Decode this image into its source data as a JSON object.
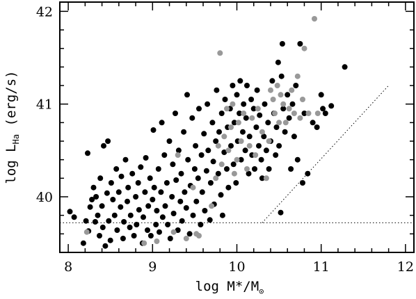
{
  "chart_data": {
    "type": "scatter",
    "xlabel": {
      "prefix": "log M*/M",
      "sub": "⊙"
    },
    "ylabel": {
      "prefix": "log L",
      "sub": "Ha",
      "suffix": " (erg/s)"
    },
    "xlim": [
      7.9,
      12.1
    ],
    "ylim": [
      39.4,
      42.1
    ],
    "x_ticks": [
      8,
      9,
      10,
      11,
      12
    ],
    "y_ticks": [
      40,
      41,
      42
    ],
    "x_minor_step": 0.2,
    "y_minor_step": 0.2,
    "grid": false,
    "reference_lines": [
      {
        "style": "dotted",
        "points": [
          [
            7.9,
            39.72
          ],
          [
            12.1,
            39.72
          ]
        ]
      },
      {
        "style": "dotted",
        "points": [
          [
            10.3,
            39.72
          ],
          [
            11.8,
            41.2
          ]
        ]
      }
    ],
    "series": [
      {
        "color": "#000000",
        "points": [
          [
            8.02,
            39.84
          ],
          [
            8.07,
            39.78
          ],
          [
            8.18,
            39.5
          ],
          [
            8.24,
            39.63
          ],
          [
            8.21,
            39.74
          ],
          [
            8.23,
            40.47
          ],
          [
            8.26,
            39.89
          ],
          [
            8.28,
            39.97
          ],
          [
            8.3,
            40.1
          ],
          [
            8.32,
            39.73
          ],
          [
            8.33,
            40.0
          ],
          [
            8.35,
            39.8
          ],
          [
            8.37,
            39.58
          ],
          [
            8.38,
            40.2
          ],
          [
            8.4,
            39.9
          ],
          [
            8.41,
            39.67
          ],
          [
            8.42,
            40.55
          ],
          [
            8.44,
            39.47
          ],
          [
            8.46,
            40.04
          ],
          [
            8.47,
            40.6
          ],
          [
            8.48,
            39.74
          ],
          [
            8.5,
            39.53
          ],
          [
            8.51,
            40.15
          ],
          [
            8.53,
            39.97
          ],
          [
            8.55,
            39.8
          ],
          [
            8.57,
            40.3
          ],
          [
            8.58,
            39.64
          ],
          [
            8.6,
            40.05
          ],
          [
            8.62,
            39.89
          ],
          [
            8.63,
            40.22
          ],
          [
            8.65,
            39.55
          ],
          [
            8.66,
            39.73
          ],
          [
            8.68,
            40.4
          ],
          [
            8.7,
            39.95
          ],
          [
            8.71,
            40.1
          ],
          [
            8.73,
            39.67
          ],
          [
            8.74,
            39.8
          ],
          [
            8.76,
            40.25
          ],
          [
            8.78,
            39.58
          ],
          [
            8.8,
            40.0
          ],
          [
            8.81,
            39.7
          ],
          [
            8.83,
            40.15
          ],
          [
            8.84,
            39.86
          ],
          [
            8.86,
            40.32
          ],
          [
            8.88,
            39.5
          ],
          [
            8.89,
            39.78
          ],
          [
            8.91,
            40.05
          ],
          [
            8.92,
            40.42
          ],
          [
            8.94,
            39.64
          ],
          [
            8.95,
            39.9
          ],
          [
            8.97,
            40.2
          ],
          [
            8.98,
            39.58
          ],
          [
            9.0,
            39.97
          ],
          [
            9.01,
            40.72
          ],
          [
            9.02,
            40.1
          ],
          [
            9.04,
            39.7
          ],
          [
            9.05,
            39.85
          ],
          [
            9.07,
            40.3
          ],
          [
            9.08,
            39.62
          ],
          [
            9.1,
            40.05
          ],
          [
            9.11,
            40.8
          ],
          [
            9.12,
            39.78
          ],
          [
            9.14,
            40.45
          ],
          [
            9.15,
            39.9
          ],
          [
            9.17,
            40.15
          ],
          [
            9.18,
            39.7
          ],
          [
            9.2,
            40.6
          ],
          [
            9.21,
            39.55
          ],
          [
            9.23,
            40.0
          ],
          [
            9.24,
            40.35
          ],
          [
            9.25,
            39.82
          ],
          [
            9.27,
            40.9
          ],
          [
            9.28,
            40.18
          ],
          [
            9.3,
            39.64
          ],
          [
            9.31,
            40.5
          ],
          [
            9.33,
            39.95
          ],
          [
            9.34,
            40.25
          ],
          [
            9.35,
            39.74
          ],
          [
            9.37,
            40.7
          ],
          [
            9.38,
            40.05
          ],
          [
            9.4,
            39.88
          ],
          [
            9.41,
            41.1
          ],
          [
            9.42,
            40.4
          ],
          [
            9.44,
            39.6
          ],
          [
            9.45,
            40.12
          ],
          [
            9.47,
            40.85
          ],
          [
            9.48,
            39.8
          ],
          [
            9.5,
            40.3
          ],
          [
            9.51,
            40.55
          ],
          [
            9.52,
            39.95
          ],
          [
            9.54,
            40.2
          ],
          [
            9.55,
            40.95
          ],
          [
            9.57,
            39.7
          ],
          [
            9.58,
            40.45
          ],
          [
            9.59,
            40.05
          ],
          [
            9.61,
            40.68
          ],
          [
            9.62,
            39.85
          ],
          [
            9.64,
            40.28
          ],
          [
            9.65,
            41.0
          ],
          [
            9.66,
            40.5
          ],
          [
            9.68,
            39.75
          ],
          [
            9.69,
            40.15
          ],
          [
            9.71,
            40.8
          ],
          [
            9.72,
            40.38
          ],
          [
            9.73,
            39.92
          ],
          [
            9.75,
            40.6
          ],
          [
            9.76,
            41.15
          ],
          [
            9.78,
            40.25
          ],
          [
            9.79,
            40.7
          ],
          [
            9.81,
            40.02
          ],
          [
            9.82,
            40.9
          ],
          [
            9.83,
            39.8
          ],
          [
            9.85,
            40.48
          ],
          [
            9.86,
            41.05
          ],
          [
            9.88,
            40.3
          ],
          [
            9.89,
            40.75
          ],
          [
            9.9,
            40.1
          ],
          [
            9.92,
            40.95
          ],
          [
            9.93,
            40.55
          ],
          [
            9.95,
            41.2
          ],
          [
            9.96,
            40.35
          ],
          [
            9.97,
            40.8
          ],
          [
            9.99,
            40.15
          ],
          [
            10.0,
            41.1
          ],
          [
            10.01,
            40.6
          ],
          [
            10.03,
            40.9
          ],
          [
            10.04,
            41.25
          ],
          [
            10.05,
            40.4
          ],
          [
            10.07,
            40.7
          ],
          [
            10.08,
            41.0
          ],
          [
            10.1,
            40.5
          ],
          [
            10.11,
            40.85
          ],
          [
            10.12,
            41.2
          ],
          [
            10.14,
            40.25
          ],
          [
            10.15,
            40.65
          ],
          [
            10.17,
            41.05
          ],
          [
            10.18,
            40.45
          ],
          [
            10.2,
            40.95
          ],
          [
            10.21,
            40.3
          ],
          [
            10.23,
            40.75
          ],
          [
            10.24,
            41.15
          ],
          [
            10.26,
            40.55
          ],
          [
            10.27,
            40.88
          ],
          [
            10.29,
            40.4
          ],
          [
            10.3,
            40.2
          ],
          [
            10.32,
            40.65
          ],
          [
            10.33,
            41.0
          ],
          [
            10.35,
            40.5
          ],
          [
            10.37,
            40.8
          ],
          [
            10.38,
            40.3
          ],
          [
            10.4,
            40.6
          ],
          [
            10.42,
            41.25
          ],
          [
            10.44,
            40.9
          ],
          [
            10.46,
            40.45
          ],
          [
            10.47,
            40.75
          ],
          [
            10.49,
            41.45
          ],
          [
            10.5,
            40.55
          ],
          [
            10.52,
            39.83
          ],
          [
            10.53,
            41.3
          ],
          [
            10.54,
            41.65
          ],
          [
            10.55,
            40.95
          ],
          [
            10.57,
            40.7
          ],
          [
            10.6,
            41.1
          ],
          [
            10.62,
            40.85
          ],
          [
            10.64,
            40.3
          ],
          [
            10.66,
            41.0
          ],
          [
            10.68,
            40.65
          ],
          [
            10.7,
            41.2
          ],
          [
            10.72,
            40.4
          ],
          [
            10.75,
            41.65
          ],
          [
            10.78,
            40.15
          ],
          [
            10.8,
            40.9
          ],
          [
            10.84,
            40.25
          ],
          [
            10.9,
            40.8
          ],
          [
            10.95,
            40.75
          ],
          [
            11.0,
            41.1
          ],
          [
            11.02,
            40.95
          ],
          [
            11.05,
            40.9
          ],
          [
            11.12,
            40.98
          ],
          [
            11.28,
            41.4
          ]
        ]
      },
      {
        "color": "#999999",
        "points": [
          [
            8.22,
            39.62
          ],
          [
            8.9,
            39.5
          ],
          [
            9.05,
            39.52
          ],
          [
            9.25,
            39.62
          ],
          [
            9.3,
            40.45
          ],
          [
            9.4,
            39.55
          ],
          [
            9.48,
            40.1
          ],
          [
            9.52,
            39.6
          ],
          [
            9.55,
            39.58
          ],
          [
            9.7,
            39.9
          ],
          [
            9.75,
            40.2
          ],
          [
            9.78,
            40.55
          ],
          [
            9.8,
            41.55
          ],
          [
            9.82,
            40.35
          ],
          [
            9.85,
            40.65
          ],
          [
            9.88,
            40.95
          ],
          [
            9.9,
            40.5
          ],
          [
            9.93,
            40.75
          ],
          [
            9.95,
            41.0
          ],
          [
            9.97,
            40.25
          ],
          [
            10.0,
            40.4
          ],
          [
            10.02,
            40.8
          ],
          [
            10.05,
            40.6
          ],
          [
            10.08,
            40.9
          ],
          [
            10.12,
            40.3
          ],
          [
            10.15,
            40.55
          ],
          [
            10.18,
            40.85
          ],
          [
            10.22,
            40.45
          ],
          [
            10.25,
            40.95
          ],
          [
            10.3,
            40.7
          ],
          [
            10.35,
            40.2
          ],
          [
            10.38,
            40.6
          ],
          [
            10.4,
            41.15
          ],
          [
            10.43,
            41.05
          ],
          [
            10.45,
            40.9
          ],
          [
            10.48,
            41.2
          ],
          [
            10.5,
            40.8
          ],
          [
            10.52,
            41.1
          ],
          [
            10.55,
            41.0
          ],
          [
            10.58,
            40.8
          ],
          [
            10.62,
            40.95
          ],
          [
            10.65,
            41.15
          ],
          [
            10.68,
            40.9
          ],
          [
            10.72,
            41.3
          ],
          [
            10.75,
            40.85
          ],
          [
            10.78,
            41.05
          ],
          [
            10.8,
            41.6
          ],
          [
            10.85,
            40.9
          ],
          [
            10.92,
            41.92
          ],
          [
            10.96,
            40.9
          ]
        ]
      }
    ]
  }
}
